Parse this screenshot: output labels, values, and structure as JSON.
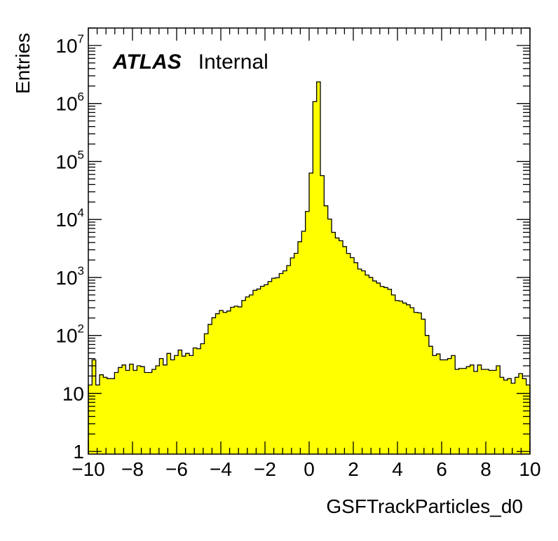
{
  "chart_data": {
    "type": "bar",
    "subtype": "histogram",
    "xlabel": "GSFTrackParticles_d0",
    "ylabel": "Entries",
    "xlim": [
      -10,
      10
    ],
    "ylim": [
      0.9,
      20000000
    ],
    "y_scale": "log",
    "fill_color": "#ffff00",
    "line_color": "#000000",
    "grid": false,
    "legend": "none",
    "annotations": [
      {
        "bold_italic": "ATLAS",
        "text": "Internal"
      }
    ],
    "xticks": [
      {
        "value": -10,
        "label": "−10"
      },
      {
        "value": -8,
        "label": "−8"
      },
      {
        "value": -6,
        "label": "−6"
      },
      {
        "value": -4,
        "label": "−4"
      },
      {
        "value": -2,
        "label": "−2"
      },
      {
        "value": 0,
        "label": "0"
      },
      {
        "value": 2,
        "label": "2"
      },
      {
        "value": 4,
        "label": "4"
      },
      {
        "value": 6,
        "label": "6"
      },
      {
        "value": 8,
        "label": "8"
      },
      {
        "value": 10,
        "label": "10"
      }
    ],
    "yticks": [
      {
        "value": 1,
        "base": "1",
        "exp": ""
      },
      {
        "value": 10,
        "base": "10",
        "exp": ""
      },
      {
        "value": 100,
        "base": "10",
        "exp": "2"
      },
      {
        "value": 1000,
        "base": "10",
        "exp": "3"
      },
      {
        "value": 10000,
        "base": "10",
        "exp": "4"
      },
      {
        "value": 100000,
        "base": "10",
        "exp": "5"
      },
      {
        "value": 1000000,
        "base": "10",
        "exp": "6"
      },
      {
        "value": 10000000,
        "base": "10",
        "exp": "7"
      }
    ],
    "bins": {
      "x_low": -10,
      "x_high": 10,
      "values": [
        14,
        38,
        14,
        21,
        19,
        18,
        18,
        23,
        28,
        31,
        25,
        32,
        25,
        30,
        29,
        23,
        23,
        26,
        30,
        40,
        31,
        49,
        38,
        45,
        56,
        44,
        49,
        45,
        61,
        59,
        72,
        107,
        155,
        202,
        237,
        270,
        250,
        264,
        306,
        320,
        311,
        401,
        461,
        500,
        600,
        632,
        705,
        750,
        850,
        967,
        991,
        1168,
        1300,
        1602,
        2174,
        2605,
        4131,
        6262,
        13740,
        63001,
        1081230,
        2358000,
        57000,
        17211,
        10150,
        6000,
        4800,
        4300,
        3400,
        2600,
        2200,
        1800,
        1400,
        1300,
        1100,
        1000,
        870,
        800,
        700,
        670,
        625,
        500,
        400,
        392,
        362,
        338,
        301,
        250,
        245,
        191,
        100,
        65,
        45,
        48,
        38,
        38,
        40,
        45,
        26,
        27,
        27,
        29,
        31,
        24,
        31,
        26,
        26,
        25,
        25,
        30,
        19,
        17,
        18,
        15,
        19,
        22,
        18,
        14
      ]
    }
  }
}
